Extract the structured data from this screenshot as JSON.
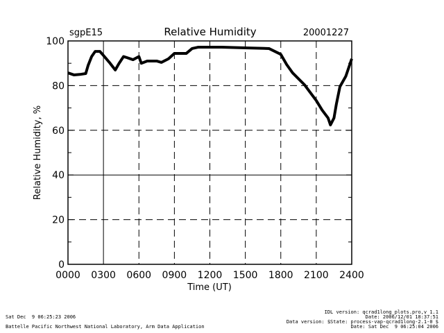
{
  "chart_data": {
    "type": "line",
    "title": "Relative Humidity",
    "left_title": "sgpE15",
    "right_title": "20001227",
    "xlabel": "Time (UT)",
    "ylabel": "Relative Humidity, %",
    "xlim": [
      0,
      24
    ],
    "ylim": [
      0,
      100
    ],
    "xticks": [
      0,
      3,
      6,
      9,
      12,
      15,
      18,
      21,
      24
    ],
    "xtick_labels": [
      "0000",
      "0300",
      "0600",
      "0900",
      "1200",
      "1500",
      "1800",
      "2100",
      "2400"
    ],
    "yticks": [
      0,
      20,
      40,
      60,
      80,
      100
    ],
    "ytick_labels": [
      "0",
      "20",
      "40",
      "60",
      "80",
      "100"
    ],
    "grid": "dashed",
    "series": [
      {
        "name": "Relative Humidity",
        "x": [
          0,
          0.5,
          1,
          1.5,
          1.7,
          2,
          2.3,
          2.7,
          3,
          3.5,
          4,
          4.3,
          4.7,
          5,
          5.5,
          6,
          6.2,
          6.7,
          7.5,
          7.9,
          8.5,
          9,
          10,
          10.5,
          11,
          13,
          15,
          17,
          18,
          18.5,
          19,
          20,
          21,
          21.5,
          22,
          22.2,
          22.5,
          22.7,
          23,
          23.5,
          24
        ],
        "y": [
          85.7,
          84.8,
          85,
          85.4,
          89,
          93,
          95.3,
          95.3,
          93.5,
          90.4,
          87,
          89.8,
          93,
          92.5,
          91.6,
          93,
          90,
          91,
          91,
          90.4,
          92,
          94.4,
          94.4,
          96.6,
          97.2,
          97.2,
          96.9,
          96.6,
          94,
          89.4,
          85.7,
          80.4,
          73.3,
          69,
          65.5,
          62.4,
          65.5,
          71.7,
          79.5,
          84.2,
          92
        ]
      }
    ]
  },
  "footer": {
    "left_line1": "Sat Dec  9 06:25:23 2006",
    "left_line2": "Battelle Pacific Northwest National Laboratory, Arm Data Application",
    "right_line1": "IDL version: qcrad1long_plots.pro,v 1.1",
    "right_line2": "Date: 2006/12/01 18:37:51",
    "right_line3": "Data version: $State: process-vap-qcrad1long-2.1-0 $",
    "right_line4": "Date: Sat Dec  9 06:25:04 2006"
  }
}
